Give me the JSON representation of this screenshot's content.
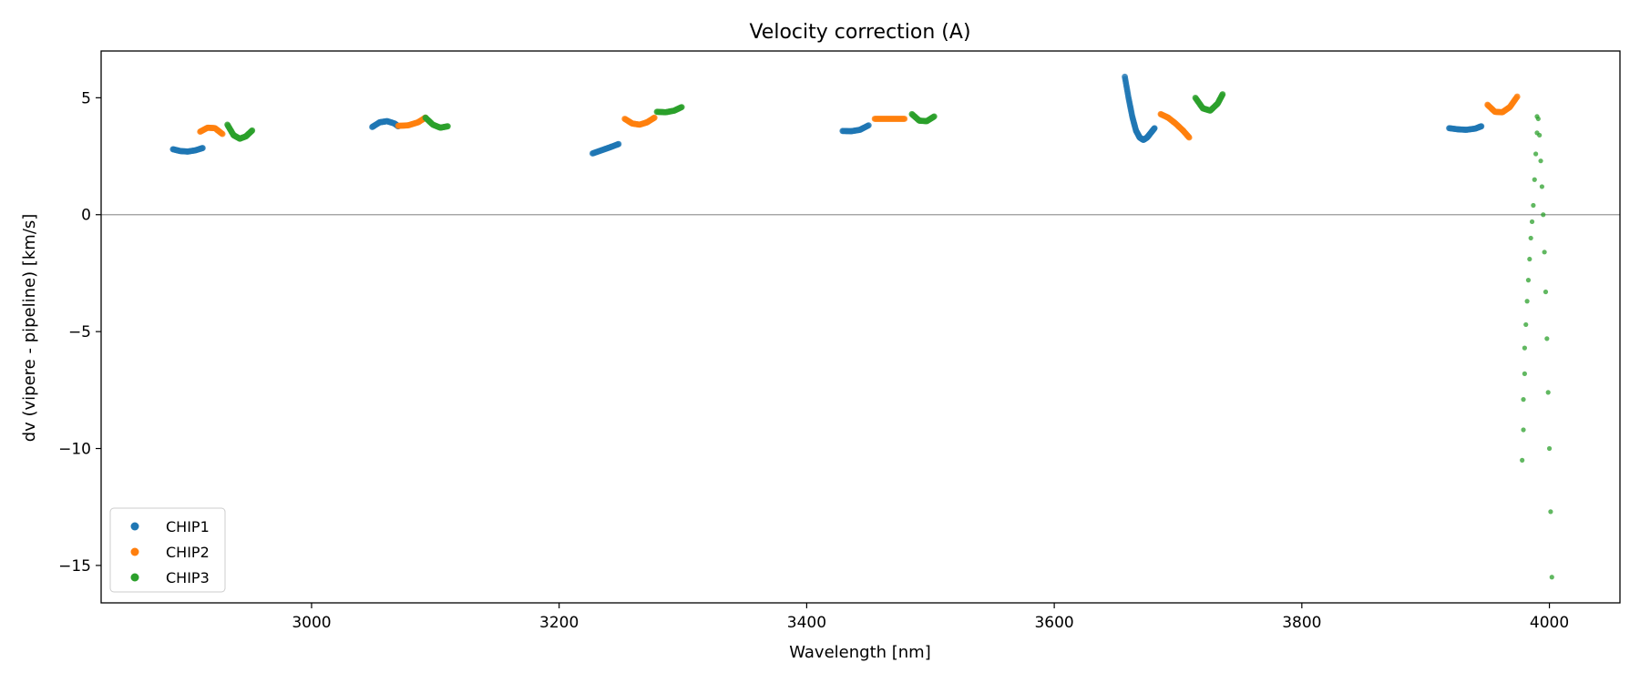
{
  "chart_data": {
    "type": "scatter",
    "title": "Velocity correction (A)",
    "xlabel": "Wavelength [nm]",
    "ylabel": "dv (vipere - pipeline) [km/s]",
    "xlim": [
      2830,
      4057
    ],
    "ylim": [
      -16.6,
      7.0
    ],
    "xticks": [
      3000,
      3200,
      3400,
      3600,
      3800,
      4000
    ],
    "yticks": [
      5,
      0,
      -5,
      -10,
      -15
    ],
    "ytick_labels": [
      "5",
      "0",
      "−5",
      "−10",
      "−15"
    ],
    "reference_line_y": 0,
    "grid": false,
    "legend": {
      "placement": "lower-left",
      "entries": [
        "CHIP1",
        "CHIP2",
        "CHIP3"
      ]
    },
    "colors": {
      "CHIP1": "#1f77b4",
      "CHIP2": "#ff7f0e",
      "CHIP3": "#2ca02c",
      "zero_line": "#999999"
    },
    "series": [
      {
        "name": "CHIP1",
        "segments": [
          {
            "x": [
              2888,
              2894,
              2900,
              2906,
              2912
            ],
            "y": [
              2.8,
              2.72,
              2.7,
              2.75,
              2.85
            ]
          },
          {
            "x": [
              3049,
              3055,
              3061,
              3067,
              3070
            ],
            "y": [
              3.75,
              3.95,
              4.0,
              3.9,
              3.78
            ]
          },
          {
            "x": [
              3227,
              3234,
              3241,
              3248
            ],
            "y": [
              2.62,
              2.75,
              2.88,
              3.02
            ]
          },
          {
            "x": [
              3429,
              3436,
              3443,
              3450
            ],
            "y": [
              3.58,
              3.57,
              3.63,
              3.82
            ]
          },
          {
            "x": [
              3657,
              3660,
              3663,
              3666,
              3669,
              3672,
              3675,
              3678,
              3681
            ],
            "y": [
              5.9,
              5.0,
              4.2,
              3.6,
              3.3,
              3.2,
              3.3,
              3.5,
              3.7
            ]
          },
          {
            "x": [
              3919,
              3926,
              3933,
              3940,
              3945
            ],
            "y": [
              3.7,
              3.65,
              3.63,
              3.68,
              3.78
            ]
          }
        ]
      },
      {
        "name": "CHIP2",
        "segments": [
          {
            "x": [
              2910,
              2916,
              2922,
              2928
            ],
            "y": [
              3.55,
              3.72,
              3.7,
              3.45
            ]
          },
          {
            "x": [
              3070,
              3078,
              3086,
              3092
            ],
            "y": [
              3.8,
              3.82,
              3.95,
              4.15
            ]
          },
          {
            "x": [
              3253,
              3259,
              3265,
              3271,
              3277
            ],
            "y": [
              4.1,
              3.9,
              3.85,
              3.95,
              4.15
            ]
          },
          {
            "x": [
              3455,
              3463,
              3471,
              3479
            ],
            "y": [
              4.1,
              4.1,
              4.1,
              4.1
            ]
          },
          {
            "x": [
              3686,
              3692,
              3698,
              3704,
              3709
            ],
            "y": [
              4.3,
              4.15,
              3.9,
              3.6,
              3.3
            ]
          },
          {
            "x": [
              3950,
              3956,
              3962,
              3968,
              3974
            ],
            "y": [
              4.7,
              4.4,
              4.38,
              4.6,
              5.05
            ]
          }
        ]
      },
      {
        "name": "CHIP3",
        "segments": [
          {
            "x": [
              2932,
              2937,
              2942,
              2947,
              2952
            ],
            "y": [
              3.85,
              3.4,
              3.25,
              3.35,
              3.6
            ]
          },
          {
            "x": [
              3092,
              3098,
              3104,
              3110
            ],
            "y": [
              4.15,
              3.85,
              3.72,
              3.78
            ]
          },
          {
            "x": [
              3279,
              3286,
              3293,
              3299
            ],
            "y": [
              4.4,
              4.38,
              4.45,
              4.6
            ]
          },
          {
            "x": [
              3485,
              3491,
              3497,
              3503
            ],
            "y": [
              4.3,
              4.02,
              4.0,
              4.2
            ]
          },
          {
            "x": [
              3714,
              3720,
              3726,
              3732,
              3736
            ],
            "y": [
              5.0,
              4.55,
              4.45,
              4.75,
              5.15
            ]
          },
          {
            "x": [
              3978,
              3979,
              3979,
              3980,
              3980,
              3981,
              3982,
              3983,
              3984,
              3985,
              3986,
              3987,
              3988,
              3989,
              3990,
              3990,
              3991,
              3992,
              3993,
              3994,
              3995,
              3996,
              3997,
              3998,
              3999,
              4000,
              4001,
              4002
            ],
            "y": [
              -10.5,
              -9.2,
              -7.9,
              -6.8,
              -5.7,
              -4.7,
              -3.7,
              -2.8,
              -1.9,
              -1.0,
              -0.3,
              0.4,
              1.5,
              2.6,
              3.5,
              4.2,
              4.1,
              3.4,
              2.3,
              1.2,
              0.0,
              -1.6,
              -3.3,
              -5.3,
              -7.6,
              -10.0,
              -12.7,
              -15.5
            ]
          }
        ]
      }
    ]
  }
}
